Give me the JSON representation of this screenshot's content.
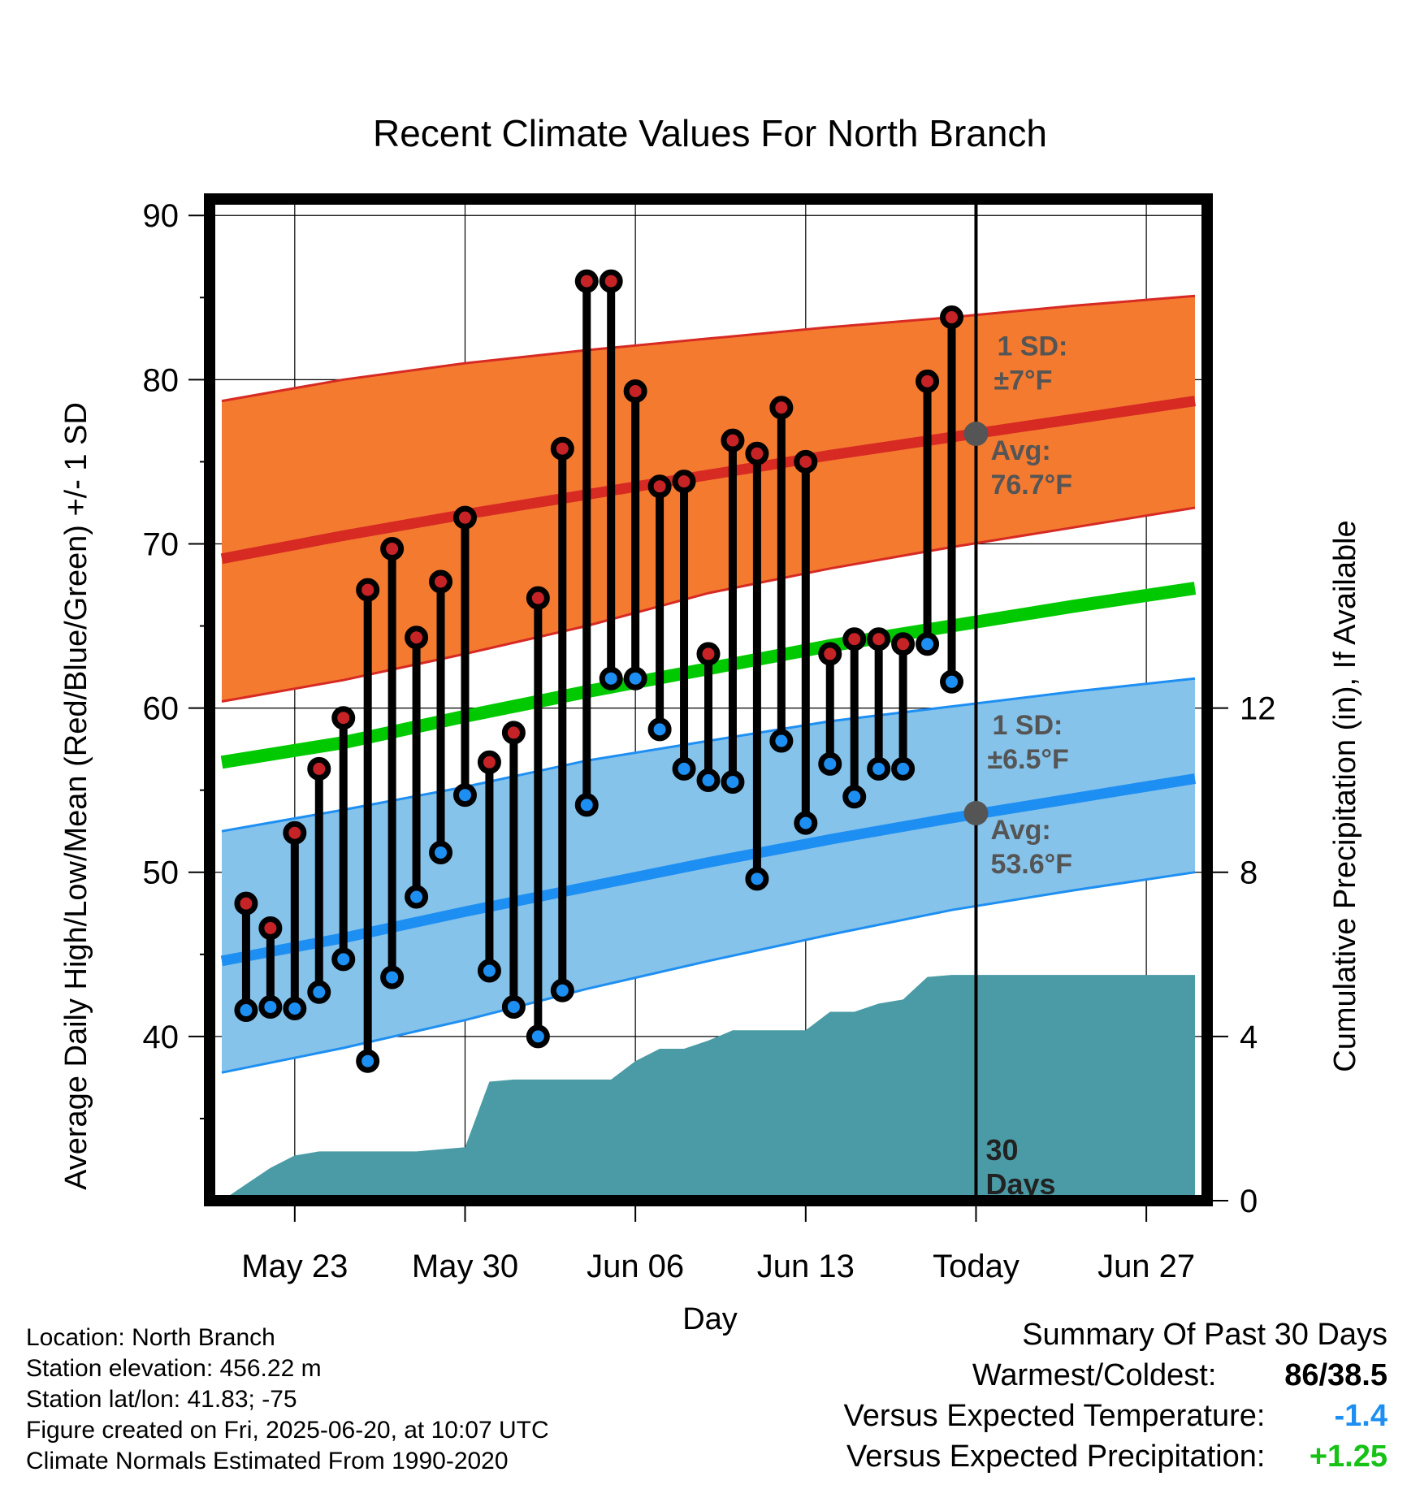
{
  "chart_data": {
    "type": "line",
    "title": "Recent Climate Values For North Branch",
    "xlabel": "Day",
    "ylabel_left": "Average Daily High/Low/Mean (Red/Blue/Green) +/- 1 SD",
    "ylabel_right": "Cumulative Precipitation (in), If Available",
    "x_tick_labels": [
      "May 23",
      "May 30",
      "Jun 06",
      "Jun 13",
      "Today",
      "Jun 27"
    ],
    "x_tick_days": [
      3,
      10,
      17,
      24,
      31,
      38
    ],
    "today_day": 31,
    "xlim": [
      -0.5,
      40.5
    ],
    "ylim_left": [
      30,
      91
    ],
    "ylim_right": [
      0,
      24.4
    ],
    "y_left_ticks": [
      40,
      50,
      60,
      70,
      80,
      90
    ],
    "y_right_ticks": [
      0,
      4,
      8,
      12
    ],
    "grid": true,
    "daily_days": [
      1,
      2,
      3,
      4,
      5,
      6,
      7,
      8,
      9,
      10,
      11,
      12,
      13,
      14,
      15,
      16,
      17,
      18,
      19,
      20,
      21,
      22,
      23,
      24,
      25,
      26,
      27,
      28,
      29,
      30
    ],
    "daily_high": [
      48.1,
      46.6,
      52.4,
      56.3,
      59.4,
      67.2,
      69.7,
      64.3,
      67.7,
      71.6,
      56.7,
      58.5,
      66.7,
      75.8,
      86.0,
      86.0,
      79.3,
      73.5,
      73.8,
      63.3,
      76.3,
      75.5,
      78.3,
      75.0,
      63.3,
      64.2,
      64.2,
      63.9,
      79.9,
      83.8
    ],
    "daily_low": [
      41.6,
      41.8,
      41.7,
      42.7,
      44.7,
      38.5,
      43.6,
      48.5,
      51.2,
      54.7,
      44.0,
      41.8,
      40.0,
      42.8,
      54.1,
      61.8,
      61.8,
      58.7,
      56.3,
      55.6,
      55.5,
      49.6,
      58.0,
      53.0,
      56.6,
      54.6,
      56.3,
      56.3,
      63.9,
      61.6
    ],
    "normal_days": [
      0,
      5,
      10,
      15,
      20,
      25,
      30,
      35,
      40
    ],
    "normal_high": [
      69.1,
      70.5,
      71.8,
      73.0,
      74.2,
      75.4,
      76.5,
      77.6,
      78.7
    ],
    "normal_high_upper": [
      78.7,
      80.0,
      81.0,
      81.8,
      82.5,
      83.2,
      83.8,
      84.5,
      85.1
    ],
    "normal_high_lower": [
      60.4,
      61.7,
      63.3,
      65.0,
      67.0,
      68.5,
      69.8,
      71.0,
      72.2
    ],
    "normal_low": [
      44.6,
      46.0,
      47.6,
      49.1,
      50.6,
      52.0,
      53.3,
      54.5,
      55.7
    ],
    "normal_low_upper": [
      52.5,
      53.8,
      55.2,
      56.8,
      58.0,
      59.2,
      60.1,
      61.0,
      61.8
    ],
    "normal_low_lower": [
      37.8,
      39.3,
      41.0,
      42.9,
      44.6,
      46.2,
      47.7,
      48.9,
      50.0
    ],
    "normal_mean": [
      56.7,
      57.9,
      59.5,
      61.0,
      62.4,
      63.8,
      65.0,
      66.2,
      67.3
    ],
    "precip_days": [
      0,
      1,
      2,
      3,
      4,
      5,
      6,
      7,
      8,
      9,
      10,
      11,
      12,
      13,
      14,
      15,
      16,
      17,
      18,
      19,
      20,
      21,
      22,
      23,
      24,
      25,
      26,
      27,
      28,
      29,
      30,
      31,
      40
    ],
    "precip_cumulative": [
      0.0,
      0.4,
      0.8,
      1.1,
      1.2,
      1.2,
      1.2,
      1.2,
      1.2,
      1.25,
      1.3,
      2.9,
      2.95,
      2.95,
      2.95,
      2.95,
      2.95,
      3.4,
      3.7,
      3.7,
      3.9,
      4.15,
      4.15,
      4.15,
      4.15,
      4.6,
      4.6,
      4.8,
      4.9,
      5.45,
      5.5,
      5.5,
      5.5
    ],
    "annotations": {
      "high_sd": "1 SD:",
      "high_sd_value": "±7°F",
      "high_avg": "Avg:",
      "high_avg_value": "76.7°F",
      "low_sd": "1 SD:",
      "low_sd_value": "±6.5°F",
      "low_avg": "Avg:",
      "low_avg_value": "53.6°F",
      "days_line1": "30",
      "days_line2": "Days"
    },
    "colors": {
      "high_band": "#f47a30",
      "high_line": "#d62a23",
      "low_band": "#86c3ea",
      "low_line": "#1e8ff2",
      "mean_line": "#00c900",
      "precip_fill": "#4a9ba5",
      "high_dot": "#c62326",
      "low_dot": "#1e8ff2",
      "today_dot": "#555555"
    }
  },
  "info": {
    "location": "Location: North Branch",
    "elevation": "Station elevation: 456.22 m",
    "latlon": "Station lat/lon: 41.83; -75",
    "created": "Figure created on Fri, 2025-06-20, at 10:07 UTC",
    "normals": "Climate Normals Estimated From 1990-2020"
  },
  "summary": {
    "title": "Summary Of Past 30 Days",
    "warmest_label": "Warmest/Coldest:",
    "warmest_value": "86/38.5",
    "temp_label": "Versus Expected Temperature:",
    "temp_value": "-1.4",
    "temp_color": "#1e8ff2",
    "precip_label": "Versus Expected Precipitation:",
    "precip_value": "+1.25",
    "precip_color": "#17c217"
  }
}
